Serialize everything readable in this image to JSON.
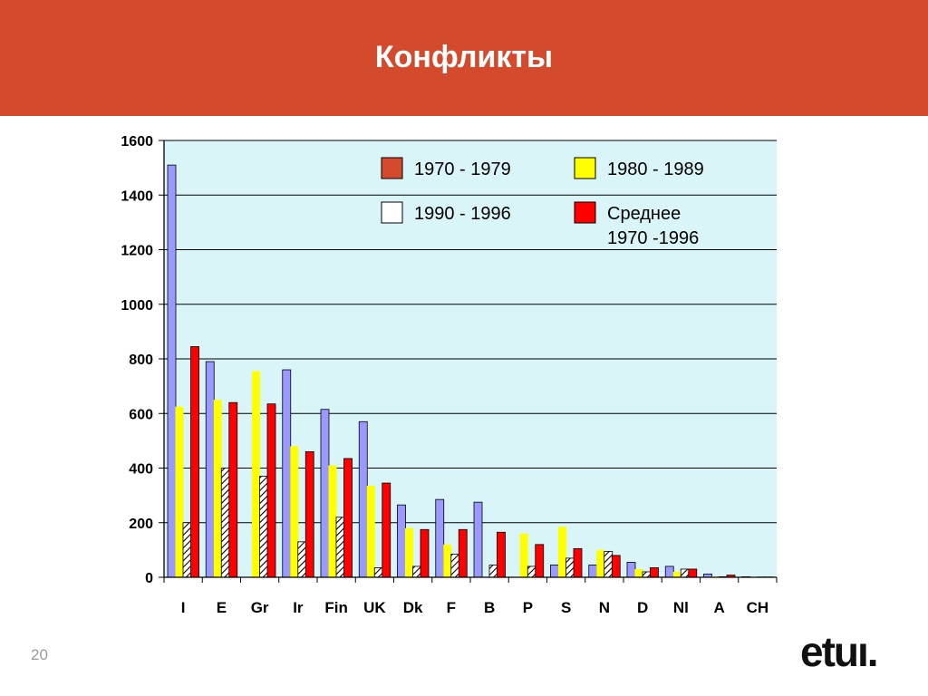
{
  "slide": {
    "title": "Конфликты",
    "number": "20",
    "logo_text": "etuı."
  },
  "colors": {
    "header": "#d44a2c",
    "plot_bg": "#d9f5f8",
    "series_1970_1979": "#9999ff",
    "series_1980_1989": "#ffff00",
    "series_1990_1996": "#ffffff",
    "series_average": "#ff0000",
    "legend_1970_1979": "#d44a2c"
  },
  "chart_data": {
    "type": "bar",
    "title": "",
    "xlabel": "",
    "ylabel": "",
    "ylim": [
      0,
      1600
    ],
    "yticks": [
      0,
      200,
      400,
      600,
      800,
      1000,
      1200,
      1400,
      1600
    ],
    "grid": true,
    "legend_position": "top-right",
    "categories": [
      "I",
      "E",
      "Gr",
      "Ir",
      "Fin",
      "UK",
      "Dk",
      "F",
      "B",
      "P",
      "S",
      "N",
      "D",
      "Nl",
      "A",
      "CH"
    ],
    "series": [
      {
        "name": "1970 - 1979",
        "legend_lines": [
          "1970 - 1979"
        ],
        "pattern": "solid",
        "values": [
          1510,
          790,
          0,
          760,
          615,
          570,
          265,
          285,
          275,
          0,
          45,
          45,
          55,
          40,
          12,
          2
        ]
      },
      {
        "name": "1980 - 1989",
        "legend_lines": [
          "1980 - 1989"
        ],
        "pattern": "solid",
        "values": [
          625,
          650,
          755,
          480,
          410,
          335,
          180,
          120,
          0,
          160,
          185,
          100,
          30,
          20,
          3,
          1
        ]
      },
      {
        "name": "1990 - 1996",
        "legend_lines": [
          "1990 - 1996"
        ],
        "pattern": "hatched",
        "values": [
          200,
          400,
          370,
          130,
          220,
          35,
          40,
          85,
          45,
          40,
          70,
          95,
          20,
          30,
          2,
          1
        ]
      },
      {
        "name": "Среднее 1970 -1996",
        "legend_lines": [
          "Среднее",
          "1970 -1996"
        ],
        "pattern": "solid",
        "values": [
          845,
          640,
          635,
          460,
          435,
          345,
          175,
          175,
          165,
          120,
          105,
          80,
          35,
          30,
          8,
          1
        ]
      }
    ]
  }
}
